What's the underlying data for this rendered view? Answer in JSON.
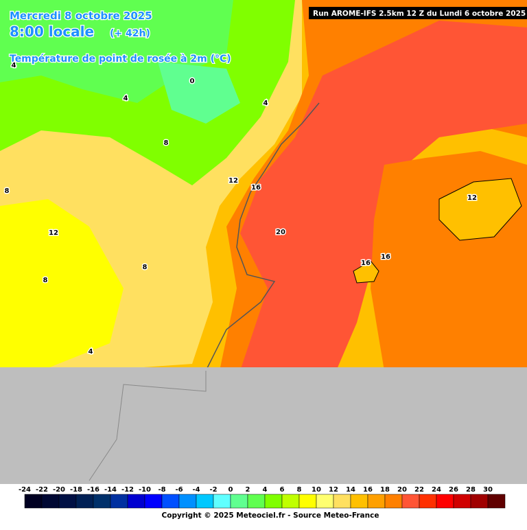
{
  "header": {
    "date": "Mercredi 8 octobre 2025",
    "time": "8:00 locale",
    "lead": "(+ 42h)",
    "parameter": "Température de point de rosée à 2m (°C)",
    "run": "Run AROME-IFS 2.5km 12 Z du Lundi 6 octobre 2025"
  },
  "contour_labels": [
    "4",
    "0",
    "4",
    "4",
    "8",
    "12",
    "16",
    "8",
    "12",
    "20",
    "12",
    "16",
    "16",
    "8",
    "8",
    "4"
  ],
  "legend": {
    "ticks": [
      -24,
      -22,
      -20,
      -18,
      -16,
      -14,
      -12,
      -10,
      -8,
      -6,
      -4,
      -2,
      0,
      2,
      4,
      6,
      8,
      10,
      12,
      14,
      16,
      18,
      20,
      22,
      24,
      26,
      28,
      30
    ],
    "colors": [
      "#000022",
      "#000833",
      "#001044",
      "#002055",
      "#00306a",
      "#0030a0",
      "#0000d0",
      "#0000ff",
      "#0050ff",
      "#0090ff",
      "#00c8ff",
      "#60ffff",
      "#60ff90",
      "#60ff50",
      "#80ff00",
      "#c0ff00",
      "#ffff00",
      "#ffff70",
      "#ffe060",
      "#ffc000",
      "#ffa000",
      "#ff8000",
      "#ff5535",
      "#ff3000",
      "#ff0000",
      "#d00000",
      "#a00000",
      "#600000"
    ]
  },
  "footer": "Copyright © 2025 Meteociel.fr - Source Meteo-France"
}
